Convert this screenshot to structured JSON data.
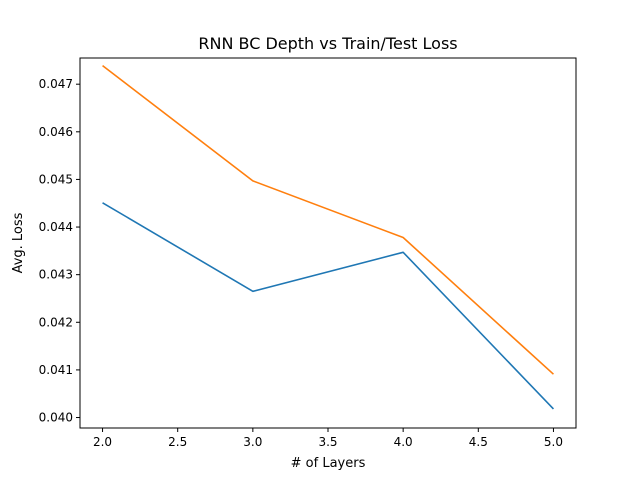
{
  "chart_data": {
    "type": "line",
    "title": "RNN BC Depth vs Train/Test Loss",
    "xlabel": "# of Layers",
    "ylabel": "Avg. Loss",
    "xlim": [
      1.85,
      5.15
    ],
    "ylim": [
      0.03978,
      0.04755
    ],
    "x": [
      2.0,
      3.0,
      4.0,
      5.0
    ],
    "xticks": [
      "2.0",
      "2.5",
      "3.0",
      "3.5",
      "4.0",
      "4.5",
      "5.0"
    ],
    "yticks": [
      "0.040",
      "0.041",
      "0.042",
      "0.043",
      "0.044",
      "0.045",
      "0.046",
      "0.047"
    ],
    "grid": false,
    "series": [
      {
        "values": [
          0.04451,
          0.04265,
          0.04347,
          0.04018
        ],
        "color": "#1f77b4"
      },
      {
        "values": [
          0.04739,
          0.04497,
          0.04378,
          0.04091
        ],
        "color": "#ff7f0e"
      }
    ]
  }
}
